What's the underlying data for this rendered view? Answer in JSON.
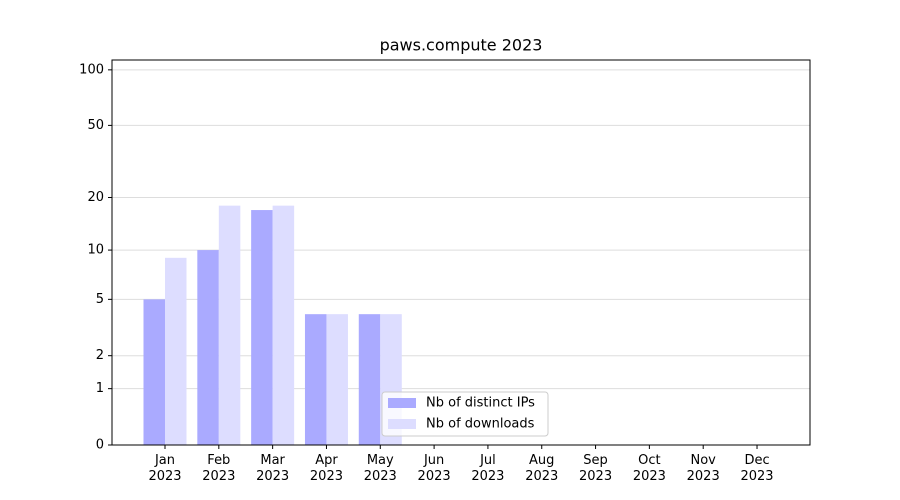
{
  "chart_data": {
    "type": "bar",
    "title": "paws.compute 2023",
    "categories": [
      "Jan\n2023",
      "Feb\n2023",
      "Mar\n2023",
      "Apr\n2023",
      "May\n2023",
      "Jun\n2023",
      "Jul\n2023",
      "Aug\n2023",
      "Sep\n2023",
      "Oct\n2023",
      "Nov\n2023",
      "Dec\n2023"
    ],
    "series": [
      {
        "name": "Nb of distinct IPs",
        "color": "#aaaaff",
        "values": [
          5,
          10,
          17,
          4,
          4,
          null,
          null,
          null,
          null,
          null,
          null,
          null
        ]
      },
      {
        "name": "Nb of downloads",
        "color": "#ddddff",
        "values": [
          9,
          18,
          18,
          4,
          4,
          null,
          null,
          null,
          null,
          null,
          null,
          null
        ]
      }
    ],
    "yscale": "log1p",
    "ylim": [
      0,
      113
    ],
    "yticks": [
      0,
      1,
      2,
      5,
      10,
      20,
      50,
      100
    ],
    "grid": true,
    "legend": "lower center"
  }
}
